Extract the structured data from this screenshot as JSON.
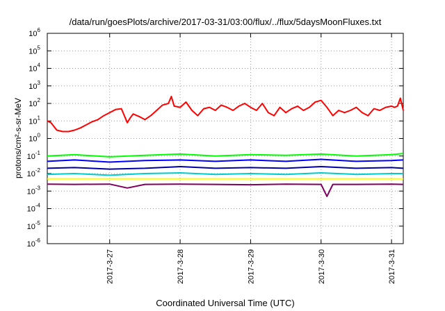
{
  "chart_data": {
    "type": "line",
    "title": "/data/run/goesPlots/archive/2017-03-31/03:00/flux/../flux/5daysMoonFluxes.txt",
    "xlabel": "Coordinated Universal Time (UTC)",
    "ylabel": "protons/cm²-s-sr-MeV",
    "y_scale": "log",
    "ylim": [
      1e-06,
      1000000.0
    ],
    "y_ticks": [
      {
        "value": 1e-06,
        "base": "10",
        "exp": "-6"
      },
      {
        "value": 1e-05,
        "base": "10",
        "exp": "-5"
      },
      {
        "value": 0.0001,
        "base": "10",
        "exp": "-4"
      },
      {
        "value": 0.001,
        "base": "10",
        "exp": "-3"
      },
      {
        "value": 0.01,
        "base": "10",
        "exp": "-2"
      },
      {
        "value": 0.1,
        "base": "10",
        "exp": "-1"
      },
      {
        "value": 1,
        "base": "10",
        "exp": "0"
      },
      {
        "value": 10,
        "base": "10",
        "exp": "1"
      },
      {
        "value": 100,
        "base": "10",
        "exp": "2"
      },
      {
        "value": 1000,
        "base": "10",
        "exp": "3"
      },
      {
        "value": 10000,
        "base": "10",
        "exp": "4"
      },
      {
        "value": 100000,
        "base": "10",
        "exp": "5"
      },
      {
        "value": 1000000,
        "base": "10",
        "exp": "6"
      }
    ],
    "xlim": [
      "2017-03-26T02:45",
      "2017-03-31T04:00"
    ],
    "x_ticks": [
      {
        "value": "2017-03-27T00:00",
        "label": "2017-3-27"
      },
      {
        "value": "2017-03-28T00:00",
        "label": "2017-3-28"
      },
      {
        "value": "2017-03-29T00:00",
        "label": "2017-3-29"
      },
      {
        "value": "2017-03-30T00:00",
        "label": "2017-3-30"
      },
      {
        "value": "2017-03-31T00:00",
        "label": "2017-3-31"
      }
    ],
    "grid": true,
    "series": [
      {
        "color": "#ff0000",
        "x": [
          "2017-03-26T02:45",
          "2017-03-26T04:00",
          "2017-03-26T06:00",
          "2017-03-26T08:00",
          "2017-03-26T10:00",
          "2017-03-26T12:00",
          "2017-03-26T14:00",
          "2017-03-26T16:00",
          "2017-03-26T18:00",
          "2017-03-26T20:00",
          "2017-03-26T22:00",
          "2017-03-27T00:00",
          "2017-03-27T02:00",
          "2017-03-27T04:00",
          "2017-03-27T06:00",
          "2017-03-27T07:00",
          "2017-03-27T08:00",
          "2017-03-27T10:00",
          "2017-03-27T12:00",
          "2017-03-27T14:00",
          "2017-03-27T16:00",
          "2017-03-27T18:00",
          "2017-03-27T20:00",
          "2017-03-27T21:00",
          "2017-03-27T22:00",
          "2017-03-28T00:00",
          "2017-03-28T02:00",
          "2017-03-28T04:00",
          "2017-03-28T06:00",
          "2017-03-28T08:00",
          "2017-03-28T10:00",
          "2017-03-28T12:00",
          "2017-03-28T14:00",
          "2017-03-28T16:00",
          "2017-03-28T18:00",
          "2017-03-28T20:00",
          "2017-03-28T22:00",
          "2017-03-29T00:00",
          "2017-03-29T02:00",
          "2017-03-29T04:00",
          "2017-03-29T06:00",
          "2017-03-29T08:00",
          "2017-03-29T10:00",
          "2017-03-29T12:00",
          "2017-03-29T14:00",
          "2017-03-29T16:00",
          "2017-03-29T18:00",
          "2017-03-29T20:00",
          "2017-03-29T22:00",
          "2017-03-30T00:00",
          "2017-03-30T02:00",
          "2017-03-30T04:00",
          "2017-03-30T06:00",
          "2017-03-30T08:00",
          "2017-03-30T10:00",
          "2017-03-30T12:00",
          "2017-03-30T14:00",
          "2017-03-30T16:00",
          "2017-03-30T18:00",
          "2017-03-30T20:00",
          "2017-03-30T22:00",
          "2017-03-31T00:00",
          "2017-03-31T01:00",
          "2017-03-31T02:00",
          "2017-03-31T03:00",
          "2017-03-31T04:00"
        ],
        "values": [
          10,
          8,
          3,
          2.5,
          2.5,
          3,
          4,
          6,
          9,
          12,
          20,
          30,
          45,
          50,
          8,
          15,
          25,
          18,
          12,
          20,
          40,
          80,
          100,
          250,
          70,
          60,
          120,
          40,
          20,
          50,
          60,
          40,
          80,
          60,
          40,
          70,
          100,
          60,
          40,
          100,
          30,
          20,
          60,
          30,
          50,
          70,
          40,
          60,
          120,
          150,
          60,
          20,
          40,
          30,
          40,
          60,
          30,
          20,
          50,
          40,
          60,
          70,
          60,
          70,
          200,
          40
        ]
      },
      {
        "color": "#00ff00",
        "x": [
          "2017-03-26T02:45",
          "2017-03-26T12:00",
          "2017-03-27T00:00",
          "2017-03-27T12:00",
          "2017-03-28T00:00",
          "2017-03-28T12:00",
          "2017-03-29T00:00",
          "2017-03-29T12:00",
          "2017-03-30T00:00",
          "2017-03-30T12:00",
          "2017-03-31T00:00",
          "2017-03-31T04:00"
        ],
        "values": [
          0.1,
          0.12,
          0.09,
          0.11,
          0.13,
          0.1,
          0.12,
          0.11,
          0.13,
          0.1,
          0.12,
          0.14
        ]
      },
      {
        "color": "#0000ff",
        "x": [
          "2017-03-26T02:45",
          "2017-03-26T12:00",
          "2017-03-27T00:00",
          "2017-03-27T12:00",
          "2017-03-28T00:00",
          "2017-03-28T12:00",
          "2017-03-29T00:00",
          "2017-03-29T12:00",
          "2017-03-30T00:00",
          "2017-03-30T12:00",
          "2017-03-31T00:00",
          "2017-03-31T04:00"
        ],
        "values": [
          0.05,
          0.06,
          0.045,
          0.055,
          0.06,
          0.05,
          0.06,
          0.05,
          0.065,
          0.05,
          0.055,
          0.06
        ]
      },
      {
        "color": "#0000a0",
        "x": [
          "2017-03-26T02:45",
          "2017-03-26T12:00",
          "2017-03-27T00:00",
          "2017-03-27T12:00",
          "2017-03-28T00:00",
          "2017-03-28T12:00",
          "2017-03-29T00:00",
          "2017-03-29T12:00",
          "2017-03-30T00:00",
          "2017-03-30T12:00",
          "2017-03-31T00:00",
          "2017-03-31T04:00"
        ],
        "values": [
          0.02,
          0.022,
          0.018,
          0.02,
          0.025,
          0.02,
          0.022,
          0.02,
          0.025,
          0.02,
          0.022,
          0.02
        ]
      },
      {
        "color": "#00cccc",
        "x": [
          "2017-03-26T02:45",
          "2017-03-26T12:00",
          "2017-03-27T00:00",
          "2017-03-27T12:00",
          "2017-03-28T00:00",
          "2017-03-28T12:00",
          "2017-03-29T00:00",
          "2017-03-29T12:00",
          "2017-03-30T00:00",
          "2017-03-30T12:00",
          "2017-03-31T00:00",
          "2017-03-31T04:00"
        ],
        "values": [
          0.009,
          0.01,
          0.008,
          0.01,
          0.011,
          0.009,
          0.01,
          0.009,
          0.011,
          0.009,
          0.01,
          0.01
        ]
      },
      {
        "color": "#ffff00",
        "x": [
          "2017-03-26T02:45",
          "2017-03-27T00:00",
          "2017-03-28T00:00",
          "2017-03-29T00:00",
          "2017-03-30T00:00",
          "2017-03-31T00:00",
          "2017-03-31T04:00"
        ],
        "values": [
          0.005,
          0.005,
          0.005,
          0.005,
          0.005,
          0.005,
          0.005
        ]
      },
      {
        "color": "#800060",
        "x": [
          "2017-03-26T02:45",
          "2017-03-26T12:00",
          "2017-03-27T00:00",
          "2017-03-27T06:00",
          "2017-03-27T12:00",
          "2017-03-28T00:00",
          "2017-03-28T12:00",
          "2017-03-29T00:00",
          "2017-03-29T12:00",
          "2017-03-30T00:00",
          "2017-03-30T02:00",
          "2017-03-30T04:00",
          "2017-03-30T12:00",
          "2017-03-31T00:00",
          "2017-03-31T04:00"
        ],
        "values": [
          0.0025,
          0.0024,
          0.0025,
          0.0015,
          0.0024,
          0.0025,
          0.0024,
          0.0023,
          0.0025,
          0.0024,
          0.0005,
          0.0024,
          0.0024,
          0.0025,
          0.0024
        ]
      }
    ]
  }
}
